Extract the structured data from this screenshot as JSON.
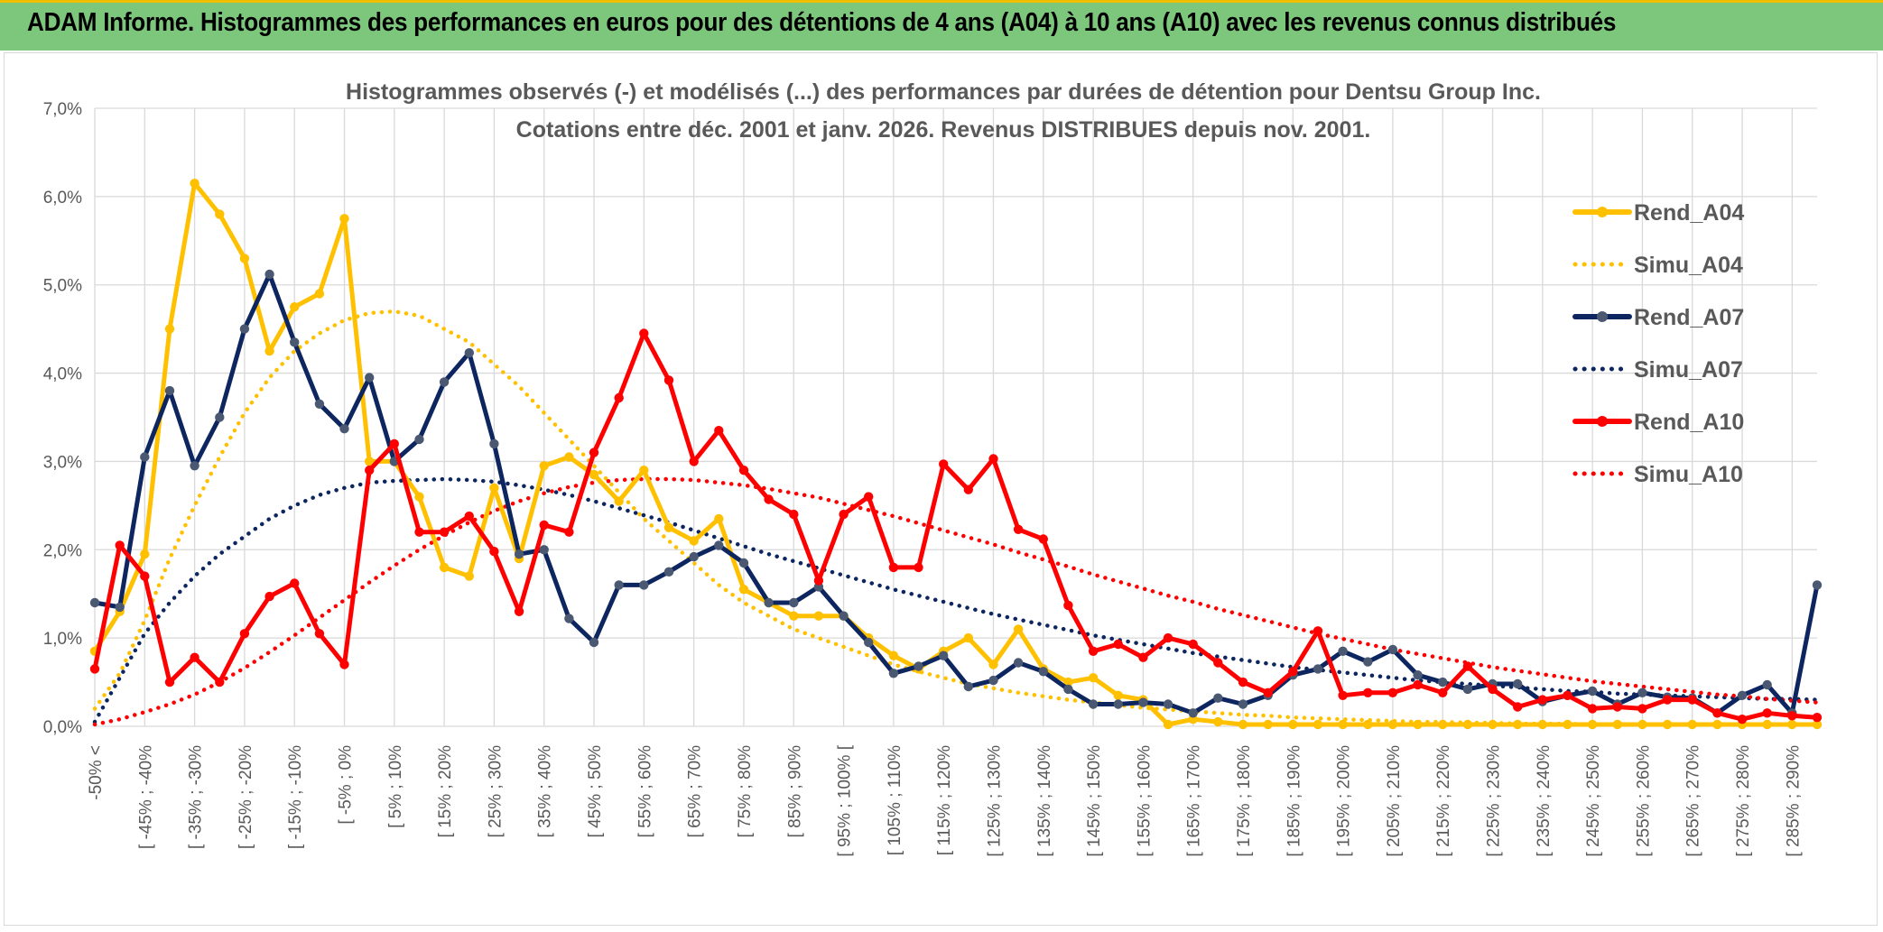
{
  "header": {
    "title": "ADAM Informe. Histogrammes des performances en euros pour des détentions de 4 ans (A04) à 10 ans (A10) avec les revenus connus distribués"
  },
  "colors": {
    "banner": "#7dc77d",
    "A04": "#ffc000",
    "A07": "#0d2660",
    "A10": "#ff0000",
    "grid": "#d9d9d9",
    "text": "#595959"
  },
  "chart_data": {
    "type": "line",
    "title": "Histogrammes observés (-) et modélisés (...) des performances par durées de détention pour Dentsu Group Inc.",
    "subtitle": "Cotations entre déc. 2001 et janv. 2026. Revenus DISTRIBUES depuis nov. 2001.",
    "xlabel": "",
    "ylabel": "",
    "ylim": [
      0,
      7
    ],
    "grid": true,
    "legend_position": "right",
    "y_ticks": [
      "0,0%",
      "1,0%",
      "2,0%",
      "3,0%",
      "4,0%",
      "5,0%",
      "6,0%",
      "7,0%"
    ],
    "x_tick_labels": [
      "-50% <",
      "[ -45% ; -40%",
      "[ -35% ; -30%",
      "[ -25% ; -20%",
      "[ -15% ; -10%",
      "[ -5% ; 0%",
      "[ 5% ; 10%",
      "[ 15% ; 20%",
      "[ 25% ; 30%",
      "[ 35% ; 40%",
      "[ 45% ; 50%",
      "[ 55% ; 60%",
      "[ 65% ; 70%",
      "[ 75% ; 80%",
      "[ 85% ; 90%",
      "[ 95% ; 100% [",
      "[ 105% ; 110%",
      "[ 115% ; 120%",
      "[ 125% ; 130%",
      "[ 135% ; 140%",
      "[ 145% ; 150%",
      "[ 155% ; 160%",
      "[ 165% ; 170%",
      "[ 175% ; 180%",
      "[ 185% ; 190%",
      "[ 195% ; 200%",
      "[ 205% ; 210%",
      "[ 215% ; 220%",
      "[ 225% ; 230%",
      "[ 235% ; 240%",
      "[ 245% ; 250%",
      "[ 255% ; 260%",
      "[ 265% ; 270%",
      "[ 275% ; 280%",
      "[ 285% ; 290%"
    ],
    "num_categories": 70,
    "series": [
      {
        "name": "Rend_A04",
        "style": "solid",
        "markers": true,
        "color": "#ffc000",
        "values": [
          0.85,
          1.3,
          1.95,
          4.5,
          6.15,
          5.8,
          5.3,
          4.25,
          4.75,
          4.9,
          5.75,
          3.0,
          3.0,
          2.6,
          1.8,
          1.7,
          2.7,
          1.9,
          2.95,
          3.05,
          2.85,
          2.55,
          2.9,
          2.25,
          2.1,
          2.35,
          1.55,
          1.4,
          1.25,
          1.25,
          1.25,
          1.0,
          0.8,
          0.65,
          0.85,
          1.0,
          0.7,
          1.1,
          0.65,
          0.5,
          0.55,
          0.35,
          0.3,
          0.02,
          0.08,
          0.05,
          0.02,
          0.02,
          0.02,
          0.02,
          0.02,
          0.02,
          0.02,
          0.02,
          0.02,
          0.02,
          0.02,
          0.02,
          0.02,
          0.02,
          0.02,
          0.02,
          0.02,
          0.02,
          0.02,
          0.02,
          0.02,
          0.02,
          0.02,
          0.02
        ]
      },
      {
        "name": "Simu_A04",
        "style": "dotted",
        "markers": false,
        "color": "#ffc000",
        "values": [
          0.2,
          0.6,
          1.2,
          1.9,
          2.5,
          3.05,
          3.55,
          3.95,
          4.25,
          4.45,
          4.6,
          4.68,
          4.7,
          4.65,
          4.5,
          4.35,
          4.1,
          3.85,
          3.55,
          3.25,
          2.95,
          2.65,
          2.35,
          2.1,
          1.85,
          1.6,
          1.4,
          1.25,
          1.1,
          1.0,
          0.9,
          0.8,
          0.7,
          0.62,
          0.55,
          0.48,
          0.43,
          0.38,
          0.34,
          0.3,
          0.27,
          0.24,
          0.21,
          0.19,
          0.17,
          0.15,
          0.13,
          0.12,
          0.1,
          0.09,
          0.08,
          0.07,
          0.06,
          0.05,
          0.05,
          0.04,
          0.04,
          0.03,
          0.03,
          0.03,
          0.02,
          0.02,
          0.02,
          0.02,
          0.02,
          0.02,
          0.02,
          0.02,
          0.02,
          0.02
        ]
      },
      {
        "name": "Rend_A07",
        "style": "solid",
        "markers": true,
        "color": "#0d2660",
        "values": [
          1.4,
          1.35,
          3.05,
          3.8,
          2.95,
          3.5,
          4.5,
          5.12,
          4.35,
          3.65,
          3.37,
          3.95,
          3.0,
          3.25,
          3.9,
          4.23,
          3.2,
          1.95,
          2.0,
          1.22,
          0.95,
          1.6,
          1.6,
          1.75,
          1.92,
          2.05,
          1.85,
          1.4,
          1.4,
          1.58,
          1.25,
          0.95,
          0.6,
          0.68,
          0.8,
          0.45,
          0.52,
          0.72,
          0.62,
          0.42,
          0.25,
          0.25,
          0.27,
          0.25,
          0.15,
          0.32,
          0.25,
          0.35,
          0.58,
          0.65,
          0.85,
          0.73,
          0.87,
          0.58,
          0.5,
          0.42,
          0.48,
          0.48,
          0.28,
          0.35,
          0.4,
          0.25,
          0.38,
          0.33,
          0.32,
          0.15,
          0.35,
          0.47,
          0.15,
          1.6
        ]
      },
      {
        "name": "Simu_A07",
        "style": "dotted",
        "markers": false,
        "color": "#0d2660",
        "values": [
          0.05,
          0.55,
          1.05,
          1.4,
          1.7,
          1.95,
          2.15,
          2.35,
          2.5,
          2.62,
          2.7,
          2.76,
          2.78,
          2.79,
          2.8,
          2.79,
          2.77,
          2.73,
          2.68,
          2.62,
          2.55,
          2.47,
          2.39,
          2.31,
          2.22,
          2.13,
          2.04,
          1.95,
          1.87,
          1.79,
          1.71,
          1.63,
          1.55,
          1.48,
          1.41,
          1.34,
          1.27,
          1.21,
          1.15,
          1.09,
          1.03,
          0.98,
          0.93,
          0.88,
          0.83,
          0.79,
          0.75,
          0.71,
          0.67,
          0.64,
          0.61,
          0.58,
          0.55,
          0.52,
          0.5,
          0.48,
          0.46,
          0.44,
          0.42,
          0.4,
          0.39,
          0.37,
          0.36,
          0.35,
          0.34,
          0.33,
          0.32,
          0.31,
          0.31,
          0.3
        ]
      },
      {
        "name": "Rend_A10",
        "style": "solid",
        "markers": true,
        "color": "#ff0000",
        "values": [
          0.65,
          2.05,
          1.7,
          0.5,
          0.78,
          0.5,
          1.05,
          1.47,
          1.62,
          1.05,
          0.7,
          2.9,
          3.2,
          2.2,
          2.2,
          2.38,
          1.98,
          1.3,
          2.28,
          2.2,
          3.1,
          3.72,
          4.45,
          3.92,
          3.0,
          3.35,
          2.9,
          2.57,
          2.4,
          1.65,
          2.4,
          2.6,
          1.8,
          1.8,
          2.97,
          2.68,
          3.03,
          2.23,
          2.12,
          1.37,
          0.85,
          0.93,
          0.78,
          1.0,
          0.93,
          0.72,
          0.5,
          0.38,
          0.62,
          1.08,
          0.35,
          0.38,
          0.38,
          0.47,
          0.38,
          0.68,
          0.42,
          0.22,
          0.3,
          0.35,
          0.2,
          0.22,
          0.2,
          0.3,
          0.3,
          0.15,
          0.08,
          0.15,
          0.12,
          0.1
        ]
      },
      {
        "name": "Simu_A10",
        "style": "dotted",
        "markers": false,
        "color": "#ff0000",
        "values": [
          0.02,
          0.08,
          0.16,
          0.25,
          0.36,
          0.5,
          0.66,
          0.84,
          1.03,
          1.23,
          1.43,
          1.63,
          1.82,
          2.0,
          2.16,
          2.31,
          2.44,
          2.55,
          2.64,
          2.71,
          2.76,
          2.79,
          2.8,
          2.8,
          2.79,
          2.76,
          2.73,
          2.69,
          2.64,
          2.59,
          2.52,
          2.45,
          2.38,
          2.3,
          2.22,
          2.14,
          2.06,
          1.97,
          1.89,
          1.81,
          1.72,
          1.64,
          1.56,
          1.48,
          1.41,
          1.33,
          1.26,
          1.19,
          1.12,
          1.05,
          0.99,
          0.93,
          0.87,
          0.82,
          0.77,
          0.72,
          0.67,
          0.63,
          0.59,
          0.55,
          0.51,
          0.48,
          0.45,
          0.42,
          0.39,
          0.36,
          0.34,
          0.31,
          0.29,
          0.27
        ]
      }
    ]
  }
}
